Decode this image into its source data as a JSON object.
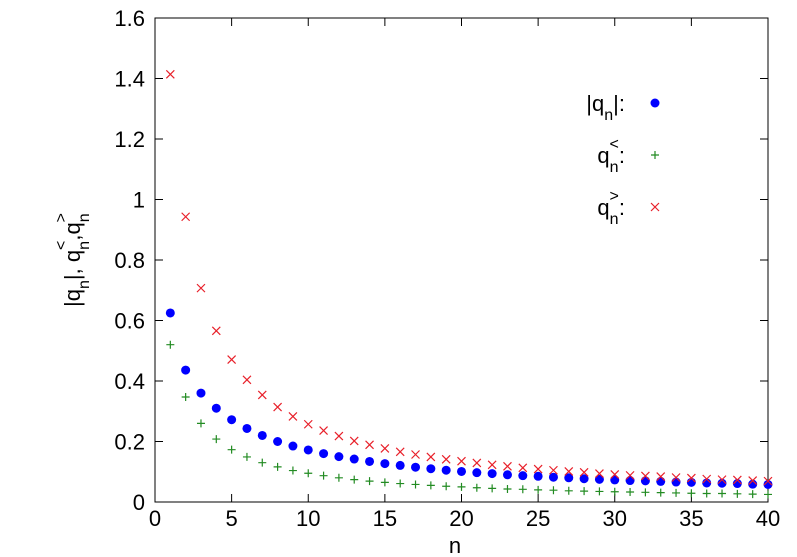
{
  "chart_data": {
    "type": "scatter",
    "xlabel": "n",
    "ylabel": "|qn|, qn<,qn>",
    "xlim": [
      0,
      40
    ],
    "xticks": [
      0,
      5,
      10,
      15,
      20,
      25,
      30,
      35,
      40
    ],
    "ylim": [
      0,
      1.6
    ],
    "yticks": [
      0,
      0.2,
      0.4,
      0.6,
      0.8,
      1,
      1.2,
      1.4,
      1.6
    ],
    "legend": "upper right",
    "x": [
      1,
      2,
      3,
      4,
      5,
      6,
      7,
      8,
      9,
      10,
      11,
      12,
      13,
      14,
      15,
      16,
      17,
      18,
      19,
      20,
      21,
      22,
      23,
      24,
      25,
      26,
      27,
      28,
      29,
      30,
      31,
      32,
      33,
      34,
      35,
      36,
      37,
      38,
      39,
      40
    ],
    "series": [
      {
        "name": "|qn|:",
        "color": "#0000ff",
        "marker": "circle",
        "values": [
          0.625,
          0.436,
          0.36,
          0.31,
          0.272,
          0.243,
          0.22,
          0.2,
          0.185,
          0.172,
          0.16,
          0.15,
          0.142,
          0.134,
          0.127,
          0.121,
          0.115,
          0.11,
          0.105,
          0.101,
          0.097,
          0.094,
          0.09,
          0.087,
          0.085,
          0.082,
          0.08,
          0.077,
          0.075,
          0.073,
          0.071,
          0.07,
          0.068,
          0.066,
          0.065,
          0.063,
          0.062,
          0.061,
          0.059,
          0.058
        ]
      },
      {
        "name": "qn<:",
        "color": "#228b22",
        "marker": "plus",
        "values": [
          0.52,
          0.347,
          0.26,
          0.208,
          0.173,
          0.149,
          0.13,
          0.116,
          0.104,
          0.095,
          0.087,
          0.08,
          0.074,
          0.069,
          0.065,
          0.061,
          0.058,
          0.055,
          0.052,
          0.05,
          0.047,
          0.045,
          0.043,
          0.042,
          0.04,
          0.039,
          0.037,
          0.036,
          0.035,
          0.034,
          0.033,
          0.032,
          0.031,
          0.03,
          0.029,
          0.028,
          0.028,
          0.027,
          0.026,
          0.025
        ]
      },
      {
        "name": "qn>:",
        "color": "#e8202a",
        "marker": "cross",
        "values": [
          1.414,
          0.943,
          0.707,
          0.566,
          0.471,
          0.404,
          0.354,
          0.314,
          0.283,
          0.257,
          0.236,
          0.218,
          0.202,
          0.189,
          0.177,
          0.166,
          0.157,
          0.149,
          0.141,
          0.135,
          0.129,
          0.123,
          0.118,
          0.113,
          0.109,
          0.105,
          0.101,
          0.098,
          0.094,
          0.091,
          0.088,
          0.086,
          0.084,
          0.081,
          0.079,
          0.076,
          0.074,
          0.073,
          0.071,
          0.069
        ]
      }
    ]
  }
}
